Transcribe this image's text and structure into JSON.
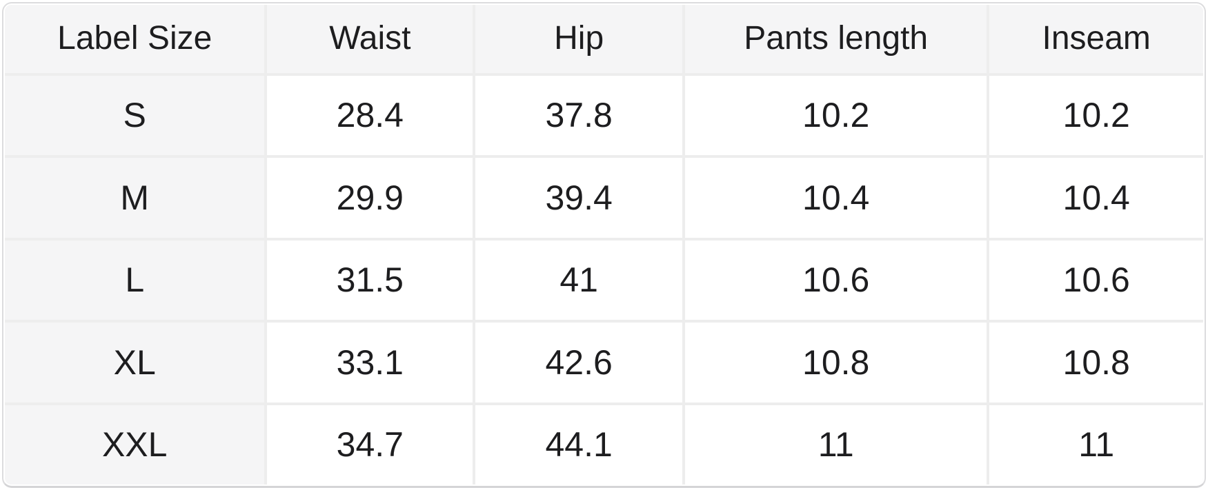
{
  "colors": {
    "header_bg": "#f5f5f6",
    "row_label_bg": "#f5f5f6",
    "cell_bg": "#ffffff",
    "grid_line": "#ededed",
    "outer_border": "#dcdcde",
    "text": "#1d1d1f"
  },
  "chart_data": {
    "type": "table",
    "columns": [
      "Label Size",
      "Waist",
      "Hip",
      "Pants length",
      "Inseam"
    ],
    "rows": [
      [
        "S",
        "28.4",
        "37.8",
        "10.2",
        "10.2"
      ],
      [
        "M",
        "29.9",
        "39.4",
        "10.4",
        "10.4"
      ],
      [
        "L",
        "31.5",
        "41",
        "10.6",
        "10.6"
      ],
      [
        "XL",
        "33.1",
        "42.6",
        "10.8",
        "10.8"
      ],
      [
        "XXL",
        "34.7",
        "44.1",
        "11",
        "11"
      ]
    ]
  }
}
